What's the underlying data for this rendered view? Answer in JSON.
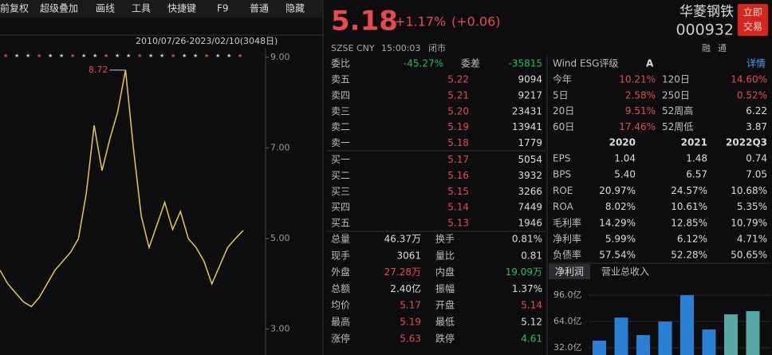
{
  "toolbar": [
    "前复权",
    "超级叠加",
    "画线",
    "工具",
    "快捷键",
    "F9",
    "普通",
    "隐藏"
  ],
  "chart_data": {
    "type": "line",
    "range_label": "2010/07/26-2023/02/10(3048日)",
    "peak_label": "8.72",
    "values": [
      4.3,
      4.0,
      3.8,
      3.6,
      3.5,
      3.7,
      4.0,
      4.3,
      4.5,
      4.7,
      5.0,
      6.0,
      7.5,
      6.5,
      7.2,
      7.8,
      8.72,
      7.0,
      5.5,
      4.8,
      5.3,
      5.8,
      5.2,
      5.6,
      5.0,
      4.8,
      4.5,
      4.0,
      4.4,
      4.8,
      5.0,
      5.18
    ],
    "color": "#e8c84a",
    "ylim": [
      2.43,
      9.21
    ],
    "yticks": [
      {
        "value": 9,
        "label": "9.00"
      },
      {
        "value": 7,
        "label": "7.00"
      },
      {
        "value": 5,
        "label": "5.00"
      },
      {
        "value": 3,
        "label": "3.00"
      }
    ]
  },
  "quote": {
    "price": "5.18",
    "change_pct": "+1.17%",
    "change_abs": "(+0.06)",
    "name": "华菱钢铁",
    "code": "000932",
    "trade_button": [
      "立即",
      "交易"
    ],
    "meta": [
      "SZSE",
      "CNY",
      "15:00:03",
      "闭市"
    ],
    "badges": [
      "融",
      "通"
    ]
  },
  "book": {
    "ratio": [
      "委比",
      "-45.27%",
      "委差",
      "-35815"
    ],
    "rows": [
      [
        "卖五",
        "5.22",
        "9094"
      ],
      [
        "卖四",
        "5.21",
        "9217"
      ],
      [
        "卖三",
        "5.20",
        "23431"
      ],
      [
        "卖二",
        "5.19",
        "13941"
      ],
      [
        "卖一",
        "5.18",
        "1779"
      ],
      [
        "买一",
        "5.17",
        "5054"
      ],
      [
        "买二",
        "5.16",
        "3932"
      ],
      [
        "买三",
        "5.15",
        "3266"
      ],
      [
        "买四",
        "5.14",
        "7449"
      ],
      [
        "买五",
        "5.13",
        "1946"
      ]
    ]
  },
  "stats": [
    [
      "总量",
      "46.37万",
      "换手",
      "0.81%"
    ],
    [
      "现手",
      "3061",
      "量比",
      "0.81"
    ],
    [
      "外盘",
      "27.28万",
      "内盘",
      "19.09万"
    ],
    [
      "总额",
      "2.40亿",
      "振幅",
      "1.37%"
    ],
    [
      "均价",
      "5.17",
      "开盘",
      "5.14"
    ],
    [
      "最高",
      "5.19",
      "最低",
      "5.12"
    ],
    [
      "涨停",
      "5.63",
      "跌停",
      "4.61"
    ]
  ],
  "esg": {
    "label": "Wind ESG评级",
    "grade": "A",
    "link": "详情"
  },
  "perf": [
    [
      "今年",
      "10.21%",
      "120日",
      "14.60%"
    ],
    [
      "5日",
      "2.58%",
      "250日",
      "0.52%"
    ],
    [
      "20日",
      "9.51%",
      "52周高",
      "6.22"
    ],
    [
      "60日",
      "17.46%",
      "52周低",
      "3.87"
    ]
  ],
  "fin": {
    "header": [
      "2020",
      "2021",
      "2022Q3"
    ],
    "rows": [
      [
        "EPS",
        "1.04",
        "1.48",
        "0.74"
      ],
      [
        "BPS",
        "5.40",
        "6.57",
        "7.05"
      ],
      [
        "ROE",
        "20.97%",
        "24.57%",
        "10.68%"
      ],
      [
        "ROA",
        "8.02%",
        "10.61%",
        "5.35%"
      ],
      [
        "毛利率",
        "14.29%",
        "12.85%",
        "10.79%"
      ],
      [
        "净利率",
        "5.99%",
        "6.12%",
        "4.71%"
      ],
      [
        "负债率",
        "57.54%",
        "52.28%",
        "50.65%"
      ]
    ]
  },
  "profit_chart": {
    "type": "bar",
    "tabs": [
      "净利润",
      "营业总收入"
    ],
    "values": [
      40.7,
      68.8,
      47.5,
      64,
      96,
      54.3,
      72.7,
      76.6
    ],
    "colors": [
      "#2a7fd4",
      "#2a7fd4",
      "#2a7fd4",
      "#2a7fd4",
      "#2a7fd4",
      "#2a7fd4",
      "#5aa8a4",
      "#5aa8a4"
    ],
    "ylim": [
      23.3,
      103.8
    ],
    "yticks": [
      {
        "value": 96,
        "label": "96.0亿"
      },
      {
        "value": 64,
        "label": "64.0亿"
      },
      {
        "value": 32,
        "label": "32.0亿"
      }
    ]
  }
}
